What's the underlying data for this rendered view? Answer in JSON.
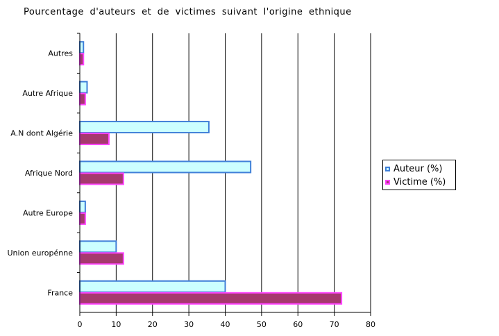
{
  "chart_data": {
    "type": "bar",
    "orientation": "horizontal",
    "title": "Pourcentage d'auteurs et de victimes suivant l'origine ethnique",
    "categories": [
      "Autres",
      "Autre Afrique",
      "A.N dont Algérie",
      "Afrique Nord",
      "Autre Europe",
      "Union europénne",
      "France"
    ],
    "series": [
      {
        "name": "Auteur (%)",
        "values": [
          1,
          2,
          35.5,
          47,
          1.5,
          10,
          40
        ],
        "fill": "#ccffff",
        "stroke": "#3f7fd8"
      },
      {
        "name": "Victime (%)",
        "values": [
          1,
          1.5,
          8,
          12,
          1.5,
          12,
          72
        ],
        "fill": "#a6396e",
        "stroke": "#ff44ff"
      }
    ],
    "xlim": [
      0,
      80
    ],
    "xticks": [
      "0",
      "10",
      "20",
      "30",
      "40",
      "50",
      "60",
      "70",
      "80"
    ],
    "grid": "vertical",
    "legend_position": "right"
  }
}
